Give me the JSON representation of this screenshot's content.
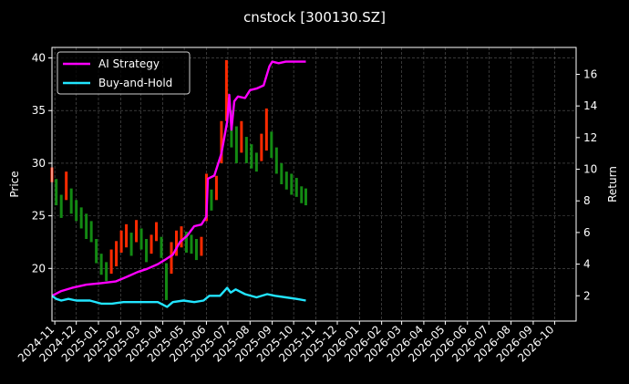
{
  "chart_data": {
    "type": "line",
    "title": "cnstock [300130.SZ]",
    "ylabel_left": "Price",
    "ylabel_right": "Return",
    "xlabel": "",
    "grid": true,
    "legend_position": "top-left",
    "xlim": [
      "2024-10-28",
      "2026-10-31"
    ],
    "ylim_left": [
      15.0,
      41.0
    ],
    "ylim_right": [
      0.4,
      17.7
    ],
    "x_ticks": [
      "2024-11",
      "2024-12",
      "2025-01",
      "2025-02",
      "2025-03",
      "2025-04",
      "2025-05",
      "2025-06",
      "2025-07",
      "2025-08",
      "2025-09",
      "2025-10",
      "2025-11",
      "2025-12",
      "2026-01",
      "2026-02",
      "2026-03",
      "2026-04",
      "2026-05",
      "2026-06",
      "2026-07",
      "2026-08",
      "2026-09",
      "2026-10"
    ],
    "y_ticks_left": [
      20,
      25,
      30,
      35,
      40
    ],
    "y_ticks_right": [
      2,
      4,
      6,
      8,
      10,
      12,
      14,
      16
    ],
    "price_series": {
      "up_color": "#ff2a00",
      "down_color": "#138a13",
      "points": [
        [
          "2024-10-28",
          28.2,
          29.6
        ],
        [
          "2024-11-03",
          26.0,
          28.5
        ],
        [
          "2024-11-10",
          24.8,
          27.0
        ],
        [
          "2024-11-17",
          26.5,
          29.2
        ],
        [
          "2024-11-24",
          25.2,
          27.6
        ],
        [
          "2024-12-01",
          24.5,
          26.5
        ],
        [
          "2024-12-08",
          23.8,
          25.8
        ],
        [
          "2024-12-15",
          22.8,
          25.2
        ],
        [
          "2024-12-22",
          22.5,
          24.5
        ],
        [
          "2024-12-29",
          20.5,
          22.8
        ],
        [
          "2025-01-05",
          19.4,
          21.4
        ],
        [
          "2025-01-12",
          18.8,
          20.6
        ],
        [
          "2025-01-19",
          19.5,
          21.8
        ],
        [
          "2025-01-26",
          20.2,
          22.6
        ],
        [
          "2025-02-02",
          21.5,
          23.6
        ],
        [
          "2025-02-09",
          22.0,
          24.2
        ],
        [
          "2025-02-16",
          21.2,
          23.4
        ],
        [
          "2025-02-23",
          22.5,
          24.6
        ],
        [
          "2025-03-02",
          21.8,
          23.8
        ],
        [
          "2025-03-09",
          20.6,
          22.8
        ],
        [
          "2025-03-16",
          21.4,
          23.2
        ],
        [
          "2025-03-23",
          22.6,
          24.4
        ],
        [
          "2025-03-30",
          21.0,
          23.0
        ],
        [
          "2025-04-06",
          17.0,
          20.5
        ],
        [
          "2025-04-13",
          19.5,
          22.5
        ],
        [
          "2025-04-20",
          21.2,
          23.6
        ],
        [
          "2025-04-27",
          22.0,
          24.0
        ],
        [
          "2025-05-04",
          21.5,
          23.5
        ],
        [
          "2025-05-11",
          21.4,
          23.2
        ],
        [
          "2025-05-18",
          20.8,
          22.8
        ],
        [
          "2025-05-25",
          21.2,
          23.0
        ],
        [
          "2025-06-01",
          24.5,
          29.0
        ],
        [
          "2025-06-08",
          25.5,
          27.5
        ],
        [
          "2025-06-15",
          26.5,
          28.8
        ],
        [
          "2025-06-22",
          30.0,
          34.0
        ],
        [
          "2025-06-29",
          34.0,
          39.8
        ],
        [
          "2025-07-06",
          31.5,
          35.0
        ],
        [
          "2025-07-13",
          30.0,
          33.5
        ],
        [
          "2025-07-20",
          31.0,
          34.0
        ],
        [
          "2025-07-27",
          30.0,
          32.5
        ],
        [
          "2025-08-03",
          29.5,
          31.8
        ],
        [
          "2025-08-10",
          29.2,
          31.0
        ],
        [
          "2025-08-17",
          30.2,
          32.8
        ],
        [
          "2025-08-24",
          31.2,
          35.2
        ],
        [
          "2025-08-31",
          30.5,
          33.0
        ],
        [
          "2025-09-07",
          29.0,
          31.5
        ],
        [
          "2025-09-14",
          28.0,
          30.0
        ],
        [
          "2025-09-21",
          27.5,
          29.2
        ],
        [
          "2025-09-28",
          27.0,
          29.0
        ],
        [
          "2025-10-05",
          26.8,
          28.6
        ],
        [
          "2025-10-12",
          26.2,
          27.8
        ],
        [
          "2025-10-18",
          26.0,
          27.6
        ]
      ]
    },
    "series": [
      {
        "name": "AI Strategy",
        "color": "#ff00ff",
        "axis": "right",
        "points": [
          [
            "2024-10-28",
            2.0
          ],
          [
            "2024-11-10",
            2.3
          ],
          [
            "2024-11-25",
            2.5
          ],
          [
            "2024-12-15",
            2.7
          ],
          [
            "2025-01-05",
            2.8
          ],
          [
            "2025-01-25",
            2.9
          ],
          [
            "2025-02-10",
            3.2
          ],
          [
            "2025-02-25",
            3.5
          ],
          [
            "2025-03-10",
            3.7
          ],
          [
            "2025-03-25",
            4.0
          ],
          [
            "2025-04-05",
            4.3
          ],
          [
            "2025-04-15",
            4.6
          ],
          [
            "2025-04-25",
            5.4
          ],
          [
            "2025-05-05",
            5.8
          ],
          [
            "2025-05-15",
            6.4
          ],
          [
            "2025-05-25",
            6.5
          ],
          [
            "2025-06-01",
            7.0
          ],
          [
            "2025-06-03",
            9.4
          ],
          [
            "2025-06-12",
            9.6
          ],
          [
            "2025-06-22",
            11.0
          ],
          [
            "2025-06-30",
            13.0
          ],
          [
            "2025-07-03",
            14.7
          ],
          [
            "2025-07-06",
            12.5
          ],
          [
            "2025-07-10",
            14.3
          ],
          [
            "2025-07-15",
            14.6
          ],
          [
            "2025-07-25",
            14.5
          ],
          [
            "2025-08-01",
            15.0
          ],
          [
            "2025-08-10",
            15.1
          ],
          [
            "2025-08-20",
            15.3
          ],
          [
            "2025-08-28",
            16.5
          ],
          [
            "2025-09-01",
            16.8
          ],
          [
            "2025-09-10",
            16.7
          ],
          [
            "2025-09-20",
            16.8
          ],
          [
            "2025-10-05",
            16.8
          ],
          [
            "2025-10-18",
            16.8
          ]
        ]
      },
      {
        "name": "Buy-and-Hold",
        "color": "#22e5ff",
        "axis": "right",
        "points": [
          [
            "2024-10-28",
            2.0
          ],
          [
            "2024-11-03",
            1.8
          ],
          [
            "2024-11-10",
            1.7
          ],
          [
            "2024-11-20",
            1.8
          ],
          [
            "2024-12-01",
            1.7
          ],
          [
            "2024-12-20",
            1.7
          ],
          [
            "2025-01-05",
            1.5
          ],
          [
            "2025-01-20",
            1.5
          ],
          [
            "2025-02-05",
            1.6
          ],
          [
            "2025-02-20",
            1.6
          ],
          [
            "2025-03-10",
            1.6
          ],
          [
            "2025-03-25",
            1.6
          ],
          [
            "2025-04-07",
            1.3
          ],
          [
            "2025-04-15",
            1.6
          ],
          [
            "2025-04-30",
            1.7
          ],
          [
            "2025-05-15",
            1.6
          ],
          [
            "2025-05-28",
            1.7
          ],
          [
            "2025-06-05",
            2.0
          ],
          [
            "2025-06-20",
            2.0
          ],
          [
            "2025-06-30",
            2.5
          ],
          [
            "2025-07-05",
            2.2
          ],
          [
            "2025-07-12",
            2.4
          ],
          [
            "2025-07-25",
            2.1
          ],
          [
            "2025-08-10",
            1.9
          ],
          [
            "2025-08-25",
            2.1
          ],
          [
            "2025-09-05",
            2.0
          ],
          [
            "2025-09-20",
            1.9
          ],
          [
            "2025-10-05",
            1.8
          ],
          [
            "2025-10-18",
            1.7
          ]
        ]
      }
    ]
  }
}
